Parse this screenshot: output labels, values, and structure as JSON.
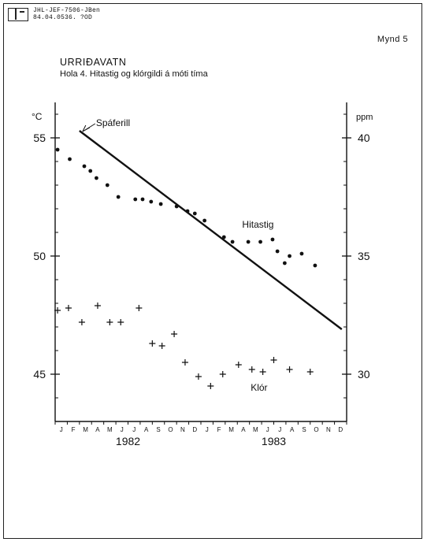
{
  "header": {
    "ref_line1": "JHL-JEF-7506-JBen",
    "ref_line2": "84.04.0536. ?OD",
    "figure_number": "Mynd 5"
  },
  "chart_data": {
    "type": "scatter",
    "title": "URRIÐAVATN",
    "subtitle": "Hola 4. Hitastig og klórgildi á móti tíma",
    "left_axis": {
      "unit": "°C",
      "ticks": [
        45,
        50,
        55
      ],
      "range": [
        43,
        56.5
      ]
    },
    "right_axis": {
      "unit": "ppm",
      "ticks": [
        30,
        35,
        40
      ],
      "range": [
        28,
        41.5
      ]
    },
    "x_axis": {
      "month_labels": [
        "J",
        "F",
        "M",
        "A",
        "M",
        "J",
        "J",
        "A",
        "S",
        "O",
        "N",
        "D",
        "J",
        "F",
        "M",
        "A",
        "M",
        "J",
        "J",
        "A",
        "S",
        "O",
        "N",
        "D"
      ],
      "year_labels": [
        "1982",
        "1983"
      ]
    },
    "series": [
      {
        "name": "Hitastig",
        "axis": "left",
        "marker": "dot",
        "points": [
          [
            0.2,
            54.5
          ],
          [
            1.2,
            54.1
          ],
          [
            2.4,
            53.8
          ],
          [
            2.9,
            53.6
          ],
          [
            3.4,
            53.3
          ],
          [
            4.3,
            53.0
          ],
          [
            5.2,
            52.5
          ],
          [
            6.6,
            52.4
          ],
          [
            7.2,
            52.4
          ],
          [
            7.9,
            52.3
          ],
          [
            8.7,
            52.2
          ],
          [
            10.0,
            52.1
          ],
          [
            10.9,
            51.9
          ],
          [
            11.5,
            51.8
          ],
          [
            12.3,
            51.5
          ],
          [
            13.9,
            50.8
          ],
          [
            14.6,
            50.6
          ],
          [
            15.9,
            50.6
          ],
          [
            16.9,
            50.6
          ],
          [
            17.9,
            50.7
          ],
          [
            18.3,
            50.2
          ],
          [
            18.9,
            49.7
          ],
          [
            19.3,
            50.0
          ],
          [
            20.3,
            50.1
          ],
          [
            21.4,
            49.6
          ]
        ]
      },
      {
        "name": "Klór",
        "axis": "right",
        "marker": "plus",
        "points": [
          [
            0.2,
            32.7
          ],
          [
            1.1,
            32.8
          ],
          [
            2.2,
            32.2
          ],
          [
            3.5,
            32.9
          ],
          [
            4.5,
            32.2
          ],
          [
            5.4,
            32.2
          ],
          [
            6.9,
            32.8
          ],
          [
            8.0,
            31.3
          ],
          [
            8.8,
            31.2
          ],
          [
            9.8,
            31.7
          ],
          [
            10.7,
            30.5
          ],
          [
            11.8,
            29.9
          ],
          [
            12.8,
            29.5
          ],
          [
            13.8,
            30.0
          ],
          [
            15.1,
            30.4
          ],
          [
            16.2,
            30.2
          ],
          [
            17.1,
            30.1
          ],
          [
            18.0,
            30.6
          ],
          [
            19.3,
            30.2
          ],
          [
            21.0,
            30.1
          ]
        ]
      },
      {
        "name": "Spáferill",
        "axis": "left",
        "marker": "line",
        "points": [
          [
            2.0,
            55.3
          ],
          [
            23.6,
            46.9
          ]
        ]
      }
    ]
  }
}
